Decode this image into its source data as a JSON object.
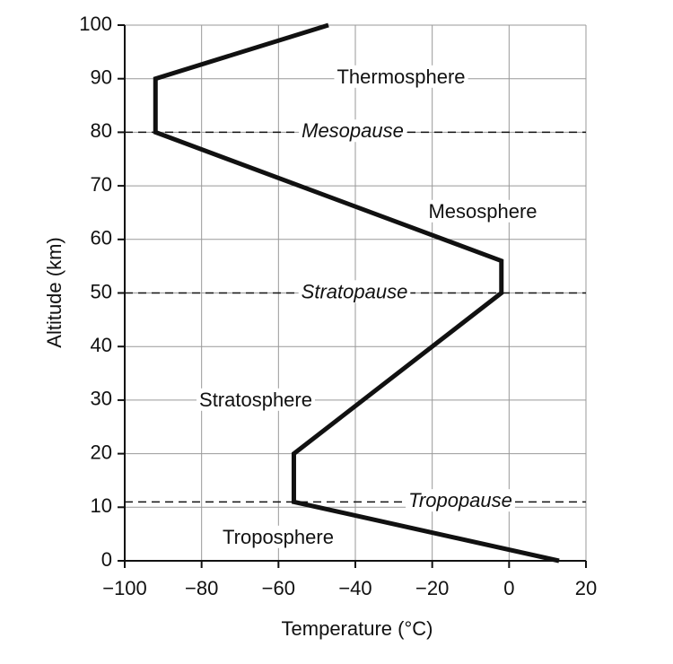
{
  "chart_data": {
    "type": "line",
    "xlabel": "Temperature (°C)",
    "ylabel": "Altitude (km)",
    "x": [
      13,
      -56,
      -56,
      -2,
      -2,
      -92,
      -92,
      -47
    ],
    "values": [
      0,
      11,
      20,
      50,
      56,
      80,
      90,
      100
    ],
    "color": "#111111",
    "xlim": [
      -100,
      20
    ],
    "xticks": [
      {
        "value": -100,
        "label": "−100"
      },
      {
        "value": -80,
        "label": "−80"
      },
      {
        "value": -60,
        "label": "−60"
      },
      {
        "value": -40,
        "label": "−40"
      },
      {
        "value": -20,
        "label": "−20"
      },
      0,
      20
    ],
    "ylim": [
      0,
      100
    ],
    "yticks": [
      0,
      10,
      20,
      30,
      40,
      50,
      60,
      70,
      80,
      90,
      100
    ],
    "grid": true,
    "boundaries": [
      {
        "label": "Mesopause",
        "altitude": 80
      },
      {
        "label": "Stratopause",
        "altitude": 50
      },
      {
        "label": "Tropopause",
        "altitude": 11
      }
    ],
    "regions": [
      "Thermosphere",
      "Mesosphere",
      "Stratosphere",
      "Troposphere"
    ]
  }
}
